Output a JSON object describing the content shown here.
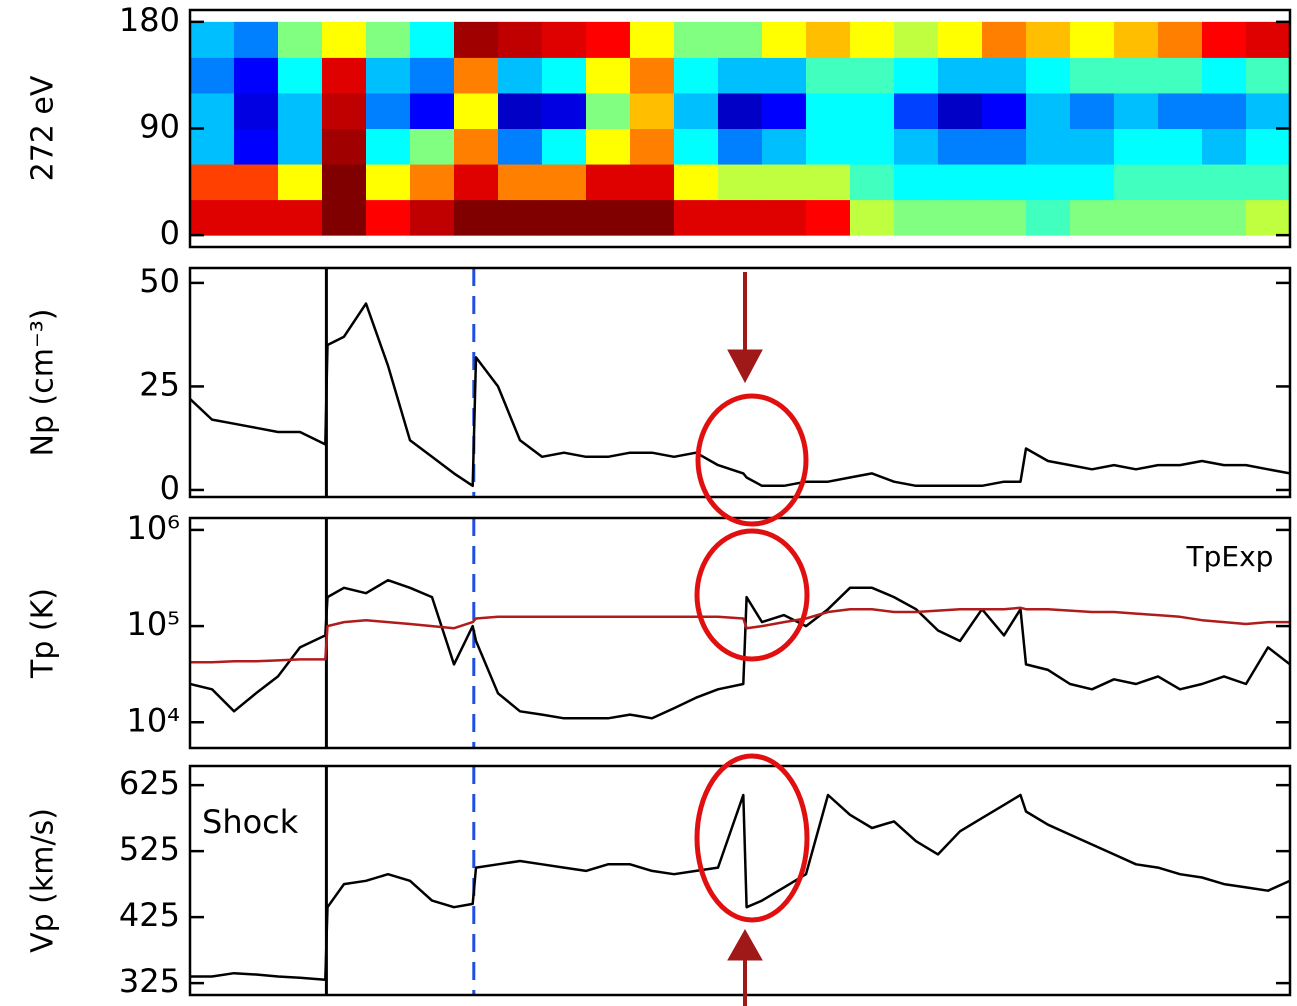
{
  "chart_data": [
    {
      "type": "heatmap",
      "ylabel": "272 eV",
      "x": [
        2,
        6,
        10,
        14,
        18,
        22,
        26,
        30,
        34,
        38,
        42,
        46,
        50,
        54,
        58,
        62,
        66,
        70,
        74,
        78,
        82,
        86,
        90,
        94,
        98
      ],
      "y": [
        15,
        45,
        75,
        105,
        135,
        165
      ],
      "values": [
        [
          0.85,
          0.85,
          0.85,
          1,
          0.8,
          0.9,
          1,
          1,
          1,
          1,
          1,
          0.85,
          0.85,
          0.85,
          0.8,
          0.55,
          0.5,
          0.5,
          0.5,
          0.45,
          0.5,
          0.5,
          0.5,
          0.5,
          0.55
        ],
        [
          0.75,
          0.75,
          0.6,
          1,
          0.6,
          0.7,
          0.85,
          0.7,
          0.7,
          0.85,
          0.85,
          0.6,
          0.55,
          0.55,
          0.55,
          0.45,
          0.4,
          0.4,
          0.4,
          0.4,
          0.4,
          0.45,
          0.45,
          0.45,
          0.45
        ],
        [
          0.35,
          0.2,
          0.35,
          0.95,
          0.4,
          0.5,
          0.7,
          0.3,
          0.4,
          0.6,
          0.7,
          0.4,
          0.3,
          0.35,
          0.4,
          0.4,
          0.35,
          0.3,
          0.3,
          0.35,
          0.35,
          0.4,
          0.4,
          0.35,
          0.4
        ],
        [
          0.35,
          0.15,
          0.35,
          0.9,
          0.3,
          0.2,
          0.6,
          0.1,
          0.15,
          0.5,
          0.65,
          0.35,
          0.1,
          0.2,
          0.4,
          0.4,
          0.25,
          0.1,
          0.2,
          0.35,
          0.3,
          0.35,
          0.3,
          0.3,
          0.35
        ],
        [
          0.3,
          0.2,
          0.4,
          0.85,
          0.35,
          0.3,
          0.7,
          0.35,
          0.4,
          0.6,
          0.7,
          0.4,
          0.35,
          0.35,
          0.45,
          0.45,
          0.4,
          0.35,
          0.35,
          0.4,
          0.45,
          0.45,
          0.45,
          0.4,
          0.45
        ],
        [
          0.35,
          0.3,
          0.5,
          0.6,
          0.5,
          0.4,
          0.95,
          0.9,
          0.85,
          0.8,
          0.6,
          0.5,
          0.5,
          0.6,
          0.65,
          0.6,
          0.55,
          0.6,
          0.7,
          0.65,
          0.6,
          0.65,
          0.7,
          0.8,
          0.85
        ]
      ],
      "xlim": [
        0,
        100
      ],
      "ylim": [
        -10,
        190
      ],
      "yticks": [
        0,
        90,
        180
      ],
      "zlim": [
        0,
        1
      ],
      "colormap": [
        "#00008f",
        "#0000ff",
        "#00ffff",
        "#ffff00",
        "#ff0000",
        "#800000"
      ]
    },
    {
      "type": "line",
      "ylabel": "Np (cm⁻³)",
      "x": [
        0,
        2,
        4,
        6,
        8,
        10,
        12.3,
        12.5,
        14,
        16,
        18,
        20,
        22,
        24,
        25.7,
        26,
        28,
        30,
        32,
        34,
        36,
        38,
        40,
        42,
        44,
        46,
        48,
        50.3,
        50.6,
        52,
        54,
        56,
        58,
        60,
        62,
        64,
        66,
        68,
        70,
        72,
        74,
        75.5,
        76,
        78,
        80,
        82,
        84,
        86,
        88,
        90,
        92,
        94,
        96,
        98,
        100
      ],
      "series": [
        {
          "color": "#000000",
          "values": [
            22,
            17,
            16,
            15,
            14,
            14,
            11,
            35,
            37,
            45,
            30,
            12,
            8,
            4,
            1,
            32,
            25,
            12,
            8,
            9,
            8,
            8,
            9,
            9,
            8,
            9,
            6,
            4,
            3,
            1,
            1,
            2,
            2,
            3,
            4,
            2,
            1,
            1,
            1,
            1,
            2,
            2,
            10,
            7,
            6,
            5,
            6,
            5,
            6,
            6,
            7,
            6,
            6,
            5,
            4
          ]
        }
      ],
      "xlim": [
        0,
        100
      ],
      "ylim": [
        -1.7,
        53.6
      ],
      "yticks": [
        0,
        25,
        50
      ],
      "vlines": [
        {
          "x": 12.4,
          "color": "#000000",
          "dashed": false
        },
        {
          "x": 25.8,
          "color": "#1f4fe0",
          "dashed": true
        }
      ]
    },
    {
      "type": "line",
      "ylabel": "Tp (K)",
      "log": true,
      "x": [
        0,
        2,
        4,
        6,
        8,
        10,
        12.3,
        12.5,
        14,
        16,
        18,
        20,
        22,
        24,
        25.7,
        26,
        28,
        30,
        32,
        34,
        36,
        38,
        40,
        42,
        44,
        46,
        48,
        50.3,
        50.6,
        52,
        54,
        56,
        58,
        60,
        62,
        64,
        66,
        68,
        70,
        72,
        74,
        75.5,
        76,
        78,
        80,
        82,
        84,
        86,
        88,
        90,
        92,
        94,
        96,
        98,
        100
      ],
      "series": [
        {
          "color": "#000000",
          "values": [
            25000,
            22000,
            13000,
            20000,
            30000,
            60000,
            80000,
            200000,
            250000,
            220000,
            300000,
            250000,
            200000,
            40000,
            100000,
            70000,
            20000,
            13000,
            12000,
            11000,
            11000,
            11000,
            12000,
            11000,
            14000,
            18000,
            22000,
            25000,
            200000,
            110000,
            130000,
            100000,
            150000,
            250000,
            250000,
            200000,
            150000,
            90000,
            70000,
            150000,
            80000,
            150000,
            40000,
            35000,
            25000,
            22000,
            28000,
            25000,
            30000,
            22000,
            25000,
            30000,
            25000,
            60000,
            40000
          ]
        },
        {
          "name": "TpExp",
          "color": "#b01c1c",
          "values": [
            42000,
            42000,
            43000,
            43000,
            44000,
            45000,
            45000,
            100000,
            110000,
            115000,
            110000,
            105000,
            100000,
            95000,
            110000,
            120000,
            125000,
            125000,
            125000,
            125000,
            125000,
            125000,
            125000,
            125000,
            125000,
            125000,
            125000,
            120000,
            95000,
            100000,
            110000,
            120000,
            140000,
            150000,
            150000,
            140000,
            140000,
            145000,
            150000,
            150000,
            150000,
            155000,
            150000,
            150000,
            145000,
            140000,
            140000,
            135000,
            130000,
            125000,
            115000,
            110000,
            105000,
            110000,
            110000
          ]
        }
      ],
      "xlim": [
        0,
        100
      ],
      "ylim": [
        5400,
        1330000
      ],
      "yticks": [
        {
          "value": 10000,
          "label": "10⁴"
        },
        {
          "value": 100000,
          "label": "10⁵"
        },
        {
          "value": 1000000,
          "label": "10⁶"
        }
      ],
      "vlines": [
        {
          "x": 12.4,
          "color": "#000000",
          "dashed": false
        },
        {
          "x": 25.8,
          "color": "#1f4fe0",
          "dashed": true
        }
      ]
    },
    {
      "type": "line",
      "ylabel": "Vp (km/s)",
      "annotation": "Shock",
      "x": [
        0,
        2,
        4,
        6,
        8,
        10,
        12.3,
        12.5,
        14,
        16,
        18,
        20,
        22,
        24,
        25.7,
        26,
        28,
        30,
        32,
        34,
        36,
        38,
        40,
        42,
        44,
        46,
        48,
        50.3,
        50.6,
        52,
        54,
        56,
        58,
        60,
        62,
        64,
        66,
        68,
        70,
        72,
        74,
        75.5,
        76,
        78,
        80,
        82,
        84,
        86,
        88,
        90,
        92,
        94,
        96,
        98,
        100
      ],
      "series": [
        {
          "color": "#000000",
          "values": [
            335,
            335,
            340,
            338,
            335,
            333,
            330,
            440,
            475,
            480,
            490,
            480,
            450,
            440,
            445,
            500,
            505,
            510,
            505,
            500,
            495,
            505,
            505,
            495,
            490,
            495,
            500,
            610,
            440,
            450,
            470,
            490,
            610,
            580,
            560,
            570,
            540,
            520,
            555,
            575,
            595,
            610,
            585,
            565,
            550,
            535,
            520,
            505,
            500,
            490,
            485,
            475,
            470,
            465,
            480
          ]
        }
      ],
      "xlim": [
        0,
        100
      ],
      "ylim": [
        307,
        654
      ],
      "yticks": [
        325,
        425,
        525,
        625
      ],
      "vlines": [
        {
          "x": 12.4,
          "color": "#000000",
          "dashed": false
        },
        {
          "x": 25.8,
          "color": "#1f4fe0",
          "dashed": true
        }
      ]
    }
  ]
}
